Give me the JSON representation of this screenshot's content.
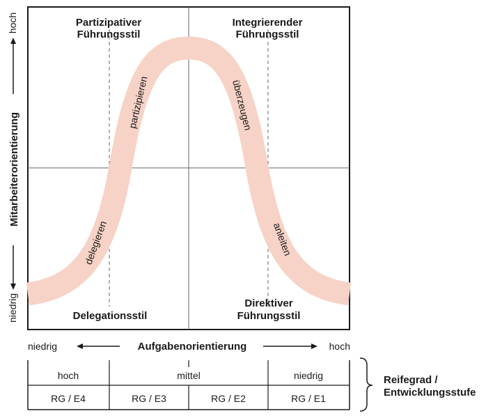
{
  "quadrants": {
    "top_left": [
      "Partizipativer",
      "Führungsstil"
    ],
    "top_right": [
      "Integrierender",
      "Führungsstil"
    ],
    "bottom_left": "Delegationsstil",
    "bottom_right": [
      "Direktiver",
      "Führungsstil"
    ]
  },
  "curve_labels": {
    "partizipieren": "partizipieren",
    "ueberzeugen": "überzeugen",
    "delegieren": "delegieren",
    "anleiten": "anleiten"
  },
  "y_axis": {
    "title": "Mitarbeiterorientierung",
    "high": "hoch",
    "low": "niedrig"
  },
  "x_axis": {
    "title": "Aufgabenorientierung",
    "low": "niedrig",
    "high": "hoch"
  },
  "maturity_table": {
    "top_row": [
      "hoch",
      "mittel",
      "niedrig"
    ],
    "bottom_row": [
      "RG / E4",
      "RG / E3",
      "RG / E2",
      "RG / E1"
    ]
  },
  "side_label": [
    "Reifegrad /",
    "Entwicklungsstufe"
  ],
  "colors": {
    "curve": "#f7d2c6",
    "frame": "#1a1a1a",
    "grid": "#666666"
  }
}
